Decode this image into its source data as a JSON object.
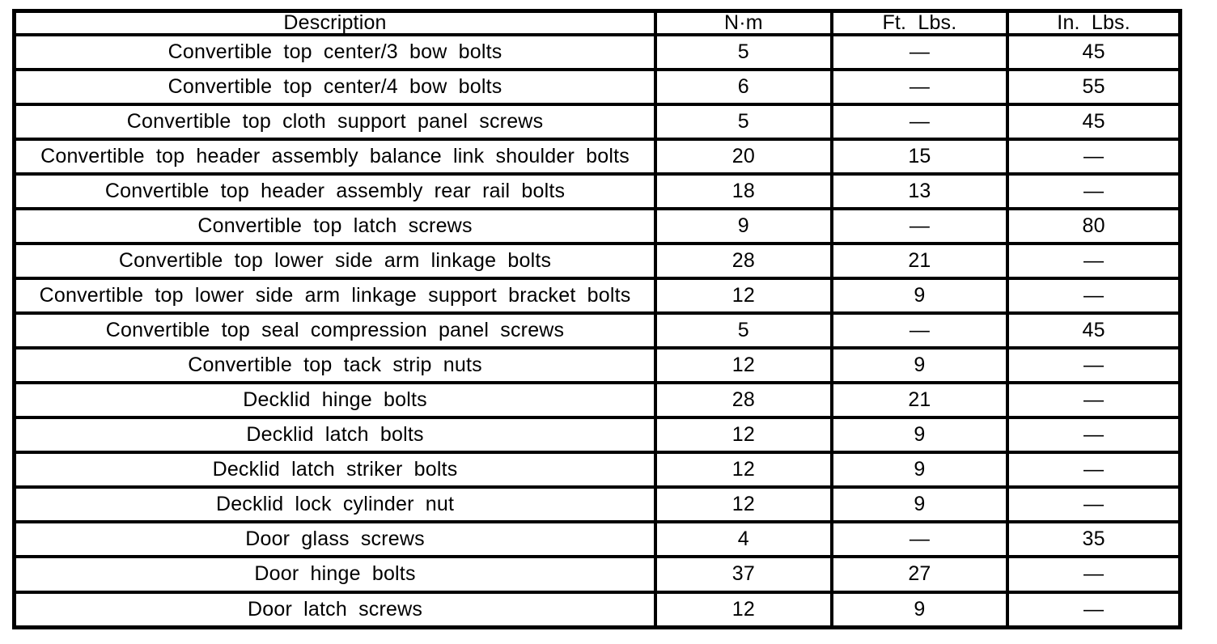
{
  "page": {
    "background_color": "#ffffff",
    "ink_color": "#000000",
    "kind": "torque-specification-table"
  },
  "table": {
    "columns": [
      "Description",
      "N·m",
      "Ft. Lbs.",
      "In. Lbs."
    ],
    "empty_marker": "—",
    "rows": [
      [
        "Convertible top center/3 bow bolts",
        "5",
        "—",
        "45"
      ],
      [
        "Convertible top center/4 bow bolts",
        "6",
        "—",
        "55"
      ],
      [
        "Convertible top cloth support panel screws",
        "5",
        "—",
        "45"
      ],
      [
        "Convertible top header assembly balance link shoulder bolts",
        "20",
        "15",
        "—"
      ],
      [
        "Convertible top header assembly rear rail bolts",
        "18",
        "13",
        "—"
      ],
      [
        "Convertible top latch screws",
        "9",
        "—",
        "80"
      ],
      [
        "Convertible top lower side arm linkage bolts",
        "28",
        "21",
        "—"
      ],
      [
        "Convertible top lower side arm linkage support bracket bolts",
        "12",
        "9",
        "—"
      ],
      [
        "Convertible top seal compression panel screws",
        "5",
        "—",
        "45"
      ],
      [
        "Convertible top tack strip nuts",
        "12",
        "9",
        "—"
      ],
      [
        "Decklid hinge bolts",
        "28",
        "21",
        "—"
      ],
      [
        "Decklid latch bolts",
        "12",
        "9",
        "—"
      ],
      [
        "Decklid latch striker bolts",
        "12",
        "9",
        "—"
      ],
      [
        "Decklid lock cylinder nut",
        "12",
        "9",
        "—"
      ],
      [
        "Door glass screws",
        "4",
        "—",
        "35"
      ],
      [
        "Door hinge bolts",
        "37",
        "27",
        "—"
      ],
      [
        "Door latch screws",
        "12",
        "9",
        "—"
      ]
    ]
  }
}
